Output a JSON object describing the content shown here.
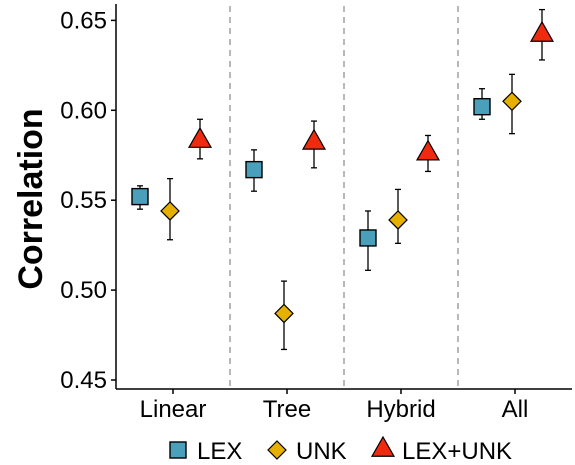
{
  "chart_data": {
    "type": "scatter",
    "categories": [
      "Linear",
      "Tree",
      "Hybrid",
      "All"
    ],
    "ylabel": "Correlation",
    "xlabel": "",
    "ylim": [
      0.445,
      0.658
    ],
    "yticks": [
      "0.45",
      "0.50",
      "0.55",
      "0.60",
      "0.65"
    ],
    "grid": false,
    "legend_position": "bottom",
    "category_separators": "dashed",
    "series": [
      {
        "name": "LEX",
        "marker": "square",
        "color": "#4a9fba",
        "values": [
          0.552,
          0.567,
          0.529,
          0.602
        ],
        "err_low": [
          0.545,
          0.555,
          0.511,
          0.595
        ],
        "err_high": [
          0.558,
          0.578,
          0.544,
          0.612
        ]
      },
      {
        "name": "UNK",
        "marker": "diamond",
        "color": "#e6b000",
        "values": [
          0.544,
          0.487,
          0.539,
          0.605
        ],
        "err_low": [
          0.528,
          0.467,
          0.526,
          0.587
        ],
        "err_high": [
          0.562,
          0.505,
          0.556,
          0.62
        ]
      },
      {
        "name": "LEX+UNK",
        "marker": "triangle",
        "color": "#ee2a0f",
        "values": [
          0.584,
          0.583,
          0.577,
          0.643
        ],
        "err_low": [
          0.573,
          0.568,
          0.566,
          0.628
        ],
        "err_high": [
          0.595,
          0.594,
          0.586,
          0.656
        ]
      }
    ]
  }
}
